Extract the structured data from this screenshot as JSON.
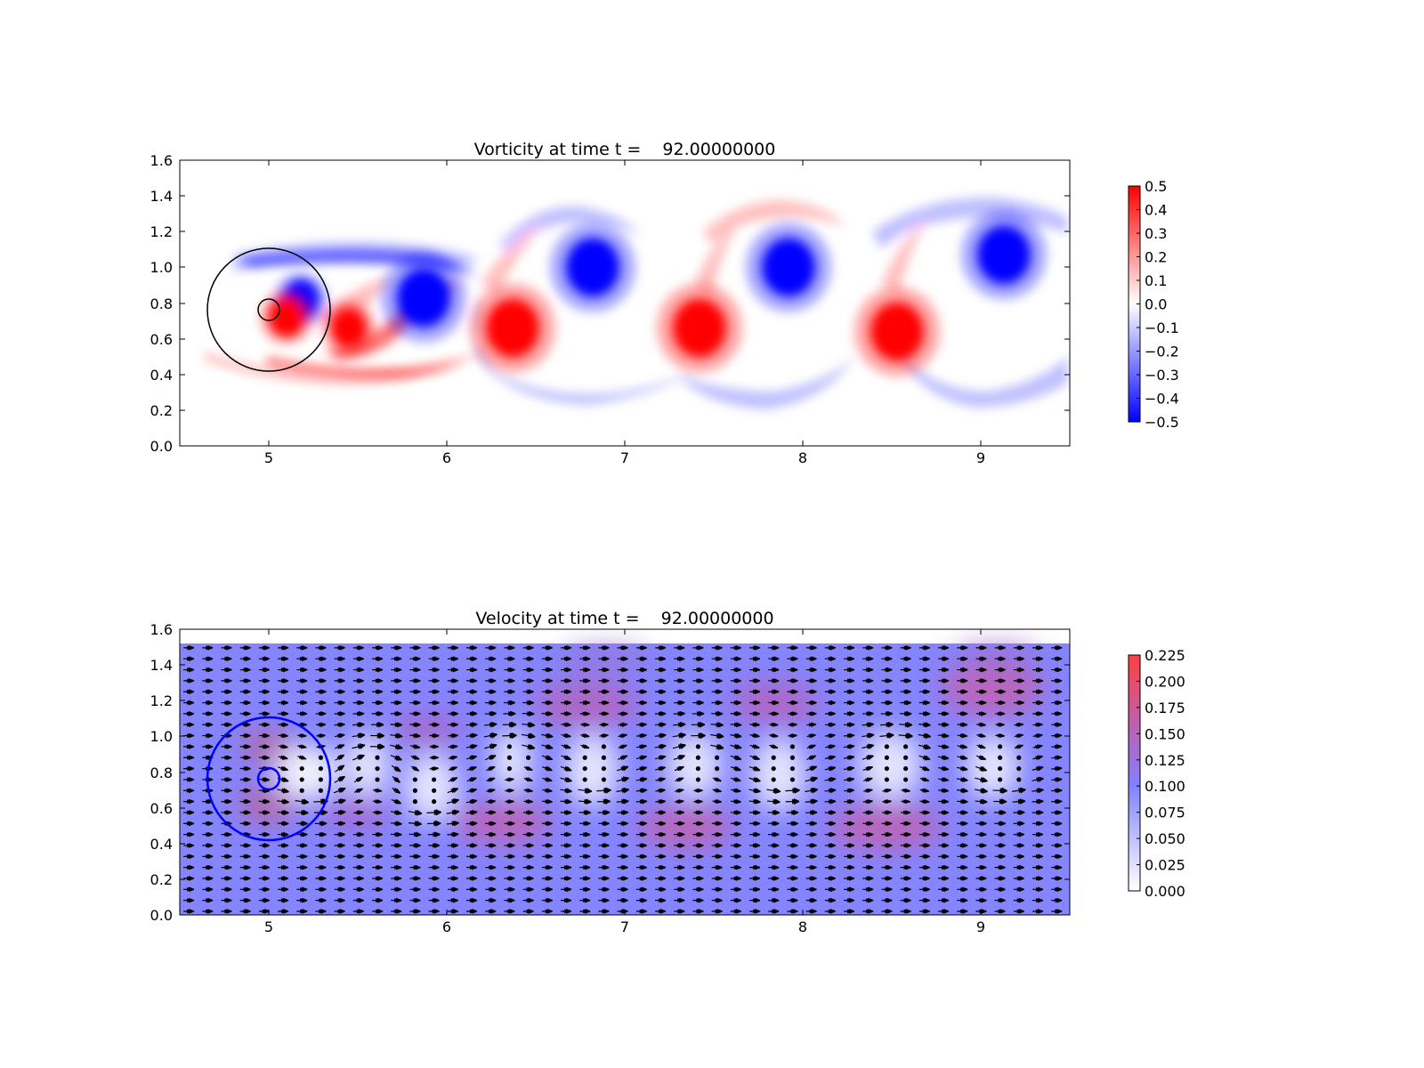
{
  "chart_data": [
    {
      "type": "heatmap",
      "title": "Vorticity at time t =    92.00000000",
      "xlim": [
        4.5,
        9.5
      ],
      "ylim": [
        0.0,
        1.6
      ],
      "x_ticks": [
        "5",
        "6",
        "7",
        "8",
        "9"
      ],
      "y_ticks": [
        "0.0",
        "0.2",
        "0.4",
        "0.6",
        "0.8",
        "1.0",
        "1.2",
        "1.4",
        "1.6"
      ],
      "colorbar": {
        "colormap": "bwr",
        "range": [
          -0.5,
          0.5
        ],
        "ticks": [
          "0.5",
          "0.4",
          "0.3",
          "0.2",
          "0.1",
          "0.0",
          "−0.1",
          "−0.2",
          "−0.3",
          "−0.4",
          "−0.5"
        ],
        "colors": {
          "positive": "#ff0000",
          "zero": "#ffffff",
          "negative": "#0000ff"
        }
      },
      "obstacle": {
        "center": [
          5.0,
          0.76
        ],
        "outer_radius": 0.34,
        "inner_radius": 0.06,
        "color": "#000000"
      },
      "vortices": [
        {
          "x": 5.18,
          "y": 0.82,
          "strength": -0.5
        },
        {
          "x": 5.1,
          "y": 0.72,
          "strength": 0.5
        },
        {
          "x": 5.45,
          "y": 0.66,
          "strength": 0.5
        },
        {
          "x": 5.87,
          "y": 0.83,
          "strength": -0.5
        },
        {
          "x": 6.37,
          "y": 0.66,
          "strength": 0.5
        },
        {
          "x": 6.82,
          "y": 1.0,
          "strength": -0.5
        },
        {
          "x": 7.42,
          "y": 0.66,
          "strength": 0.5
        },
        {
          "x": 7.92,
          "y": 1.0,
          "strength": -0.5
        },
        {
          "x": 8.53,
          "y": 0.64,
          "strength": 0.5
        },
        {
          "x": 9.13,
          "y": 1.07,
          "strength": -0.5
        }
      ],
      "grid": false
    },
    {
      "type": "heatmap",
      "title": "Velocity at time t =    92.00000000",
      "xlim": [
        4.5,
        9.5
      ],
      "ylim": [
        0.0,
        1.6
      ],
      "x_ticks": [
        "5",
        "6",
        "7",
        "8",
        "9"
      ],
      "y_ticks": [
        "0.0",
        "0.2",
        "0.4",
        "0.6",
        "0.8",
        "1.0",
        "1.2",
        "1.4",
        "1.6"
      ],
      "field_top": 1.52,
      "colorbar": {
        "colormap": "white-blue-magenta-red",
        "range": [
          0.0,
          0.225
        ],
        "ticks": [
          "0.225",
          "0.200",
          "0.175",
          "0.150",
          "0.125",
          "0.100",
          "0.075",
          "0.050",
          "0.025",
          "0.000"
        ],
        "colors": {
          "low": "#ffffff",
          "mid": "#8080ff",
          "high_mid": "#bf60b0",
          "high": "#ff4040"
        }
      },
      "obstacle": {
        "center": [
          5.0,
          0.76
        ],
        "outer_radius": 0.34,
        "inner_radius": 0.06,
        "color": "#0000ff"
      },
      "overlay": "quiver arrows",
      "grid": false
    }
  ]
}
